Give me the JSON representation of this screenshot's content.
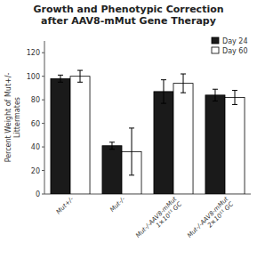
{
  "chart_data": {
    "type": "bar",
    "title": "Growth and Phenotypic Correction\nafter AAV8-mMut Gene Therapy",
    "y_label": "Percent Weight of Mut+/-\nLittermates",
    "categories": [
      "Mut+/-",
      "Mut-/-",
      "Mut-/-AAV8-mMut\n1×10¹¹ GC",
      "Mut-/-AAV8-mMut\n2×10¹¹ GC"
    ],
    "series": [
      {
        "name": "Day 24",
        "color": "#1a1a1a",
        "values": [
          98,
          41,
          87,
          84
        ],
        "errors": [
          3,
          3,
          10,
          5
        ]
      },
      {
        "name": "Day 60",
        "color": "#ffffff",
        "values": [
          100,
          36,
          94,
          82
        ],
        "errors": [
          5,
          20,
          8,
          6
        ]
      }
    ],
    "ylim": [
      0,
      130
    ],
    "yticks": [
      0,
      20,
      40,
      60,
      80,
      100,
      120
    ],
    "legend": "upper right",
    "grid": false
  }
}
